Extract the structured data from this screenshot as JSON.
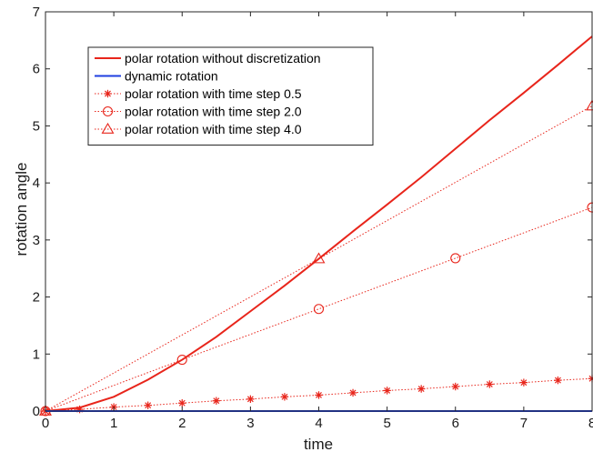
{
  "chart_data": {
    "type": "line",
    "title": "",
    "xlabel": "time",
    "ylabel": "rotation angle",
    "xlim": [
      0,
      8
    ],
    "ylim": [
      0,
      7
    ],
    "xticks": [
      0,
      1,
      2,
      3,
      4,
      5,
      6,
      7,
      8
    ],
    "yticks": [
      0,
      1,
      2,
      3,
      4,
      5,
      6,
      7
    ],
    "grid": false,
    "legend_position": "top-left",
    "series": [
      {
        "name": "polar rotation without discretization",
        "color": "#e8251b",
        "style": "solid",
        "marker": "none",
        "x": [
          0,
          0.5,
          1,
          1.5,
          2,
          2.5,
          3,
          3.5,
          4,
          4.5,
          5,
          5.5,
          6,
          6.5,
          7,
          7.5,
          8
        ],
        "y": [
          0,
          0.06,
          0.25,
          0.55,
          0.9,
          1.3,
          1.75,
          2.2,
          2.67,
          3.15,
          3.62,
          4.1,
          4.6,
          5.1,
          5.58,
          6.07,
          6.57
        ]
      },
      {
        "name": "dynamic rotation",
        "color": "#1f3fe0",
        "style": "solid",
        "marker": "none",
        "x": [
          0,
          8
        ],
        "y": [
          0,
          0
        ]
      },
      {
        "name": "polar rotation with time step 0.5",
        "color": "#e8251b",
        "style": "dotted",
        "marker": "star",
        "x": [
          0,
          0.5,
          1,
          1.5,
          2,
          2.5,
          3,
          3.5,
          4,
          4.5,
          5,
          5.5,
          6,
          6.5,
          7,
          7.5,
          8
        ],
        "y": [
          0,
          0.03,
          0.07,
          0.1,
          0.14,
          0.18,
          0.21,
          0.25,
          0.28,
          0.32,
          0.36,
          0.39,
          0.43,
          0.47,
          0.5,
          0.54,
          0.57
        ]
      },
      {
        "name": "polar rotation with time step 2.0",
        "color": "#e8251b",
        "style": "dotted",
        "marker": "circle",
        "x": [
          0,
          2,
          4,
          6,
          8
        ],
        "y": [
          0,
          0.9,
          1.79,
          2.68,
          3.57
        ]
      },
      {
        "name": "polar rotation with time step 4.0",
        "color": "#e8251b",
        "style": "dotted",
        "marker": "triangle",
        "x": [
          0,
          4,
          8
        ],
        "y": [
          0,
          2.67,
          5.35
        ]
      }
    ]
  }
}
